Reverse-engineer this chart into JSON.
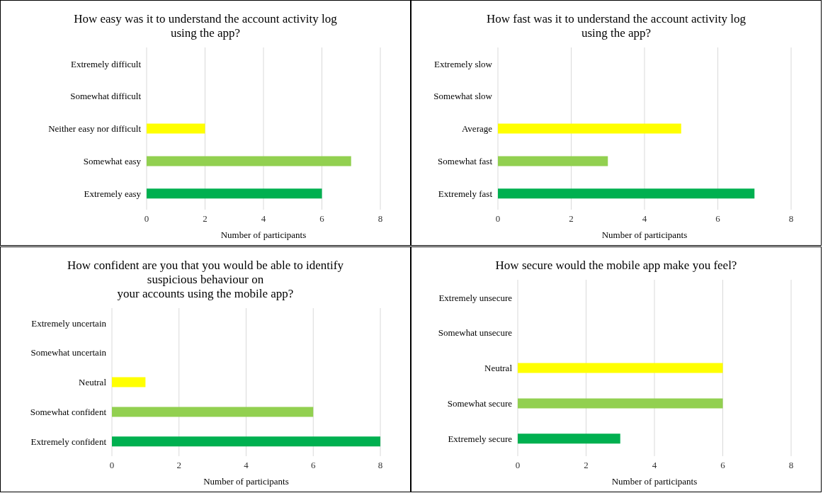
{
  "chart_data": [
    {
      "type": "bar",
      "orientation": "horizontal",
      "title": "How easy was it to understand the account activity log\nusing the app?",
      "categories": [
        "Extremely difficult",
        "Somewhat difficult",
        "Neither easy nor difficult",
        "Somewhat easy",
        "Extremely easy"
      ],
      "values": [
        0,
        0,
        2,
        7,
        6
      ],
      "colors": [
        null,
        null,
        "#ffff00",
        "#92d050",
        "#00b050"
      ],
      "xlabel": "Number of participants",
      "xlim": [
        0,
        8
      ],
      "xticks": [
        0,
        2,
        4,
        6,
        8
      ],
      "grid": "x"
    },
    {
      "type": "bar",
      "orientation": "horizontal",
      "title": "How fast was it to understand the account activity log\nusing the app?",
      "categories": [
        "Extremely slow",
        "Somewhat slow",
        "Average",
        "Somewhat fast",
        "Extremely fast"
      ],
      "values": [
        0,
        0,
        5,
        3,
        7
      ],
      "colors": [
        null,
        null,
        "#ffff00",
        "#92d050",
        "#00b050"
      ],
      "xlabel": "Number of participants",
      "xlim": [
        0,
        8
      ],
      "xticks": [
        0,
        2,
        4,
        6,
        8
      ],
      "grid": "x"
    },
    {
      "type": "bar",
      "orientation": "horizontal",
      "title": "How confident are you that you would be able to identify\nsuspicious behaviour on\nyour accounts using the mobile app?",
      "categories": [
        "Extremely uncertain",
        "Somewhat uncertain",
        "Neutral",
        "Somewhat confident",
        "Extremely confident"
      ],
      "values": [
        0,
        0,
        1,
        6,
        8
      ],
      "colors": [
        null,
        null,
        "#ffff00",
        "#92d050",
        "#00b050"
      ],
      "xlabel": "Number of participants",
      "xlim": [
        0,
        8
      ],
      "xticks": [
        0,
        2,
        4,
        6,
        8
      ],
      "grid": "x"
    },
    {
      "type": "bar",
      "orientation": "horizontal",
      "title": "How secure would the mobile app make you feel?",
      "categories": [
        "Extremely unsecure",
        "Somewhat unsecure",
        "Neutral",
        "Somewhat secure",
        "Extremely secure"
      ],
      "values": [
        0,
        0,
        6,
        6,
        3
      ],
      "colors": [
        null,
        null,
        "#ffff00",
        "#92d050",
        "#00b050"
      ],
      "xlabel": "Number of participants",
      "xlim": [
        0,
        8
      ],
      "xticks": [
        0,
        2,
        4,
        6,
        8
      ],
      "grid": "x"
    }
  ]
}
